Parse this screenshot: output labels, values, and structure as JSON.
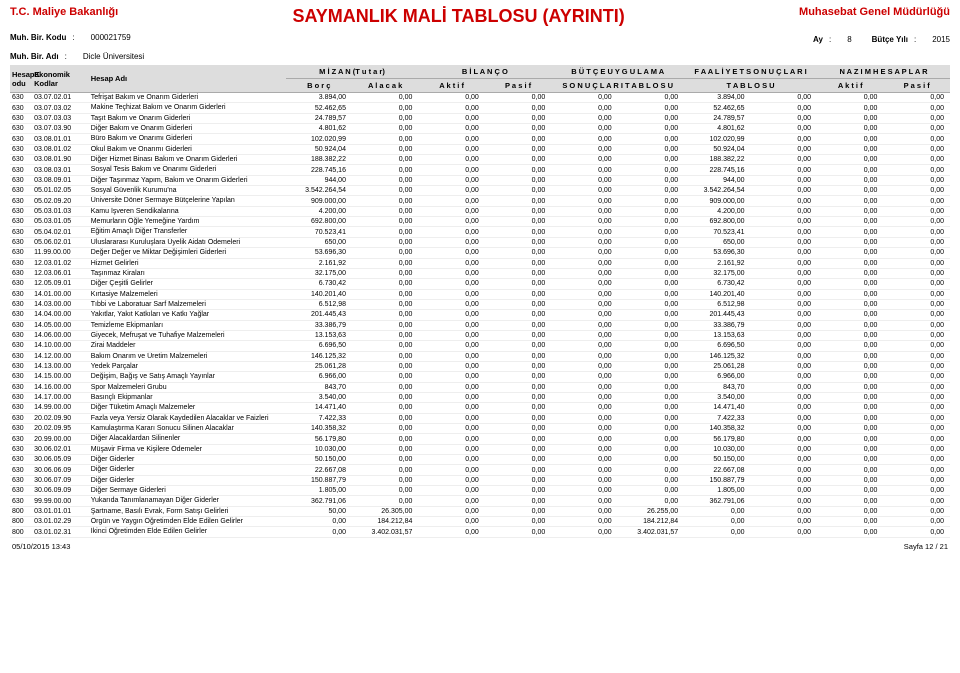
{
  "header": {
    "tc_line": "T.C. Maliye Bakanlığı",
    "gm_line": "Muhasebat Genel Müdürlüğü",
    "title": "SAYMANLIK MALİ TABLOSU (AYRINTI)",
    "muh_bir_kodu_label": "Muh. Bir. Kodu",
    "muh_bir_kodu_val": "000021759",
    "ay_label": "Ay",
    "ay_val": "8",
    "butce_yili_label": "Bütçe Yılı",
    "butce_yili_val": "2015",
    "muh_bir_adi_label": "Muh. Bir. Adı",
    "muh_bir_adi_val": "Dicle Üniversitesi"
  },
  "columns": {
    "hesap_kodu": "HesapK odu",
    "ekonomik_kodlar": "Ekonomik Kodlar",
    "hesap_adi": "Hesap Adı",
    "mizan": "M İ Z A N   (T u t a r)",
    "bilanco": "B İ L A N Ç O",
    "butce_uyg": "B Ü T Ç E   U Y G U L A M A",
    "faaliyet": "F A A L İ Y E T   S O N U Ç L A R I",
    "nazim": "N A Z I M   H E S A P L A R",
    "borc": "B o r ç",
    "alacak": "A l a c a k",
    "aktif": "A k t i f",
    "pasif": "P a s i f",
    "sonuc_tab": "S O N U Ç L A R I   T A B L O S U",
    "tablosu": "T A B L O S U"
  },
  "rows": [
    {
      "h": "630",
      "k": "03.07.02.01",
      "ad": "Tefrişat Bakım ve Onarım Giderleri",
      "v": [
        "3.894,00",
        "0,00",
        "0,00",
        "0,00",
        "0,00",
        "0,00",
        "3.894,00",
        "0,00",
        "0,00",
        "0,00"
      ]
    },
    {
      "h": "630",
      "k": "03.07.03.02",
      "ad": "Makine Teçhizat Bakım ve Onarım Giderleri",
      "v": [
        "52.462,65",
        "0,00",
        "0,00",
        "0,00",
        "0,00",
        "0,00",
        "52.462,65",
        "0,00",
        "0,00",
        "0,00"
      ]
    },
    {
      "h": "630",
      "k": "03.07.03.03",
      "ad": "Taşıt Bakım ve Onarım Giderleri",
      "v": [
        "24.789,57",
        "0,00",
        "0,00",
        "0,00",
        "0,00",
        "0,00",
        "24.789,57",
        "0,00",
        "0,00",
        "0,00"
      ]
    },
    {
      "h": "630",
      "k": "03.07.03.90",
      "ad": "Diğer Bakım ve Onarım Giderleri",
      "v": [
        "4.801,62",
        "0,00",
        "0,00",
        "0,00",
        "0,00",
        "0,00",
        "4.801,62",
        "0,00",
        "0,00",
        "0,00"
      ]
    },
    {
      "h": "630",
      "k": "03.08.01.01",
      "ad": "Büro Bakım ve Onarımı Giderleri",
      "v": [
        "102.020,99",
        "0,00",
        "0,00",
        "0,00",
        "0,00",
        "0,00",
        "102.020,99",
        "0,00",
        "0,00",
        "0,00"
      ]
    },
    {
      "h": "630",
      "k": "03.08.01.02",
      "ad": "Okul Bakım ve Onarımı Giderleri",
      "v": [
        "50.924,04",
        "0,00",
        "0,00",
        "0,00",
        "0,00",
        "0,00",
        "50.924,04",
        "0,00",
        "0,00",
        "0,00"
      ]
    },
    {
      "h": "630",
      "k": "03.08.01.90",
      "ad": "Diğer Hizmet Binası Bakım ve Onarım Giderleri",
      "v": [
        "188.382,22",
        "0,00",
        "0,00",
        "0,00",
        "0,00",
        "0,00",
        "188.382,22",
        "0,00",
        "0,00",
        "0,00"
      ]
    },
    {
      "h": "630",
      "k": "03.08.03.01",
      "ad": "Sosyal Tesis Bakım ve Onarımı Giderleri",
      "v": [
        "228.745,16",
        "0,00",
        "0,00",
        "0,00",
        "0,00",
        "0,00",
        "228.745,16",
        "0,00",
        "0,00",
        "0,00"
      ]
    },
    {
      "h": "630",
      "k": "03.08.09.01",
      "ad": "Diğer Taşınmaz Yapım, Bakım ve Onarım Giderleri",
      "v": [
        "944,00",
        "0,00",
        "0,00",
        "0,00",
        "0,00",
        "0,00",
        "944,00",
        "0,00",
        "0,00",
        "0,00"
      ]
    },
    {
      "h": "630",
      "k": "05.01.02.05",
      "ad": "Sosyal Güvenlik Kurumu'na",
      "v": [
        "3.542.264,54",
        "0,00",
        "0,00",
        "0,00",
        "0,00",
        "0,00",
        "3.542.264,54",
        "0,00",
        "0,00",
        "0,00"
      ]
    },
    {
      "h": "630",
      "k": "05.02.09.20",
      "ad": "Üniversite Döner Sermaye Bütçelerine Yapılan",
      "v": [
        "909.000,00",
        "0,00",
        "0,00",
        "0,00",
        "0,00",
        "0,00",
        "909.000,00",
        "0,00",
        "0,00",
        "0,00"
      ]
    },
    {
      "h": "630",
      "k": "05.03.01.03",
      "ad": "Kamu İşveren Sendikalarına",
      "v": [
        "4.200,00",
        "0,00",
        "0,00",
        "0,00",
        "0,00",
        "0,00",
        "4.200,00",
        "0,00",
        "0,00",
        "0,00"
      ]
    },
    {
      "h": "630",
      "k": "05.03.01.05",
      "ad": "Memurların Öğle Yemeğine Yardım",
      "v": [
        "692.800,00",
        "0,00",
        "0,00",
        "0,00",
        "0,00",
        "0,00",
        "692.800,00",
        "0,00",
        "0,00",
        "0,00"
      ]
    },
    {
      "h": "630",
      "k": "05.04.02.01",
      "ad": "Eğitim Amaçlı Diğer Transferler",
      "v": [
        "70.523,41",
        "0,00",
        "0,00",
        "0,00",
        "0,00",
        "0,00",
        "70.523,41",
        "0,00",
        "0,00",
        "0,00"
      ]
    },
    {
      "h": "630",
      "k": "05.06.02.01",
      "ad": "Uluslararası Kuruluşlara Üyelik Aidatı Ödemeleri",
      "v": [
        "650,00",
        "0,00",
        "0,00",
        "0,00",
        "0,00",
        "0,00",
        "650,00",
        "0,00",
        "0,00",
        "0,00"
      ]
    },
    {
      "h": "630",
      "k": "11.99.00.00",
      "ad": "Değer Değer ve Miktar Değişimleri Giderleri",
      "v": [
        "53.696,30",
        "0,00",
        "0,00",
        "0,00",
        "0,00",
        "0,00",
        "53.696,30",
        "0,00",
        "0,00",
        "0,00"
      ]
    },
    {
      "h": "630",
      "k": "12.03.01.02",
      "ad": "Hizmet Gelirleri",
      "v": [
        "2.161,92",
        "0,00",
        "0,00",
        "0,00",
        "0,00",
        "0,00",
        "2.161,92",
        "0,00",
        "0,00",
        "0,00"
      ]
    },
    {
      "h": "630",
      "k": "12.03.06.01",
      "ad": "Taşınmaz Kiraları",
      "v": [
        "32.175,00",
        "0,00",
        "0,00",
        "0,00",
        "0,00",
        "0,00",
        "32.175,00",
        "0,00",
        "0,00",
        "0,00"
      ]
    },
    {
      "h": "630",
      "k": "12.05.09.01",
      "ad": "Diğer Çeşitli Gelirler",
      "v": [
        "6.730,42",
        "0,00",
        "0,00",
        "0,00",
        "0,00",
        "0,00",
        "6.730,42",
        "0,00",
        "0,00",
        "0,00"
      ]
    },
    {
      "h": "630",
      "k": "14.01.00.00",
      "ad": "Kırtasiye Malzemeleri",
      "v": [
        "140.201,40",
        "0,00",
        "0,00",
        "0,00",
        "0,00",
        "0,00",
        "140.201,40",
        "0,00",
        "0,00",
        "0,00"
      ]
    },
    {
      "h": "630",
      "k": "14.03.00.00",
      "ad": "Tıbbi ve Laboratuar Sarf Malzemeleri",
      "v": [
        "6.512,98",
        "0,00",
        "0,00",
        "0,00",
        "0,00",
        "0,00",
        "6.512,98",
        "0,00",
        "0,00",
        "0,00"
      ]
    },
    {
      "h": "630",
      "k": "14.04.00.00",
      "ad": "Yakıtlar, Yakıt Katkıları ve Katkı Yağlar",
      "v": [
        "201.445,43",
        "0,00",
        "0,00",
        "0,00",
        "0,00",
        "0,00",
        "201.445,43",
        "0,00",
        "0,00",
        "0,00"
      ]
    },
    {
      "h": "630",
      "k": "14.05.00.00",
      "ad": "Temizleme Ekipmanları",
      "v": [
        "33.386,79",
        "0,00",
        "0,00",
        "0,00",
        "0,00",
        "0,00",
        "33.386,79",
        "0,00",
        "0,00",
        "0,00"
      ]
    },
    {
      "h": "630",
      "k": "14.06.00.00",
      "ad": "Giyecek, Mefruşat ve Tuhafiye Malzemeleri",
      "v": [
        "13.153,63",
        "0,00",
        "0,00",
        "0,00",
        "0,00",
        "0,00",
        "13.153,63",
        "0,00",
        "0,00",
        "0,00"
      ]
    },
    {
      "h": "630",
      "k": "14.10.00.00",
      "ad": "Zirai Maddeler",
      "v": [
        "6.696,50",
        "0,00",
        "0,00",
        "0,00",
        "0,00",
        "0,00",
        "6.696,50",
        "0,00",
        "0,00",
        "0,00"
      ]
    },
    {
      "h": "630",
      "k": "14.12.00.00",
      "ad": "Bakım Onarım ve Üretim Malzemeleri",
      "v": [
        "146.125,32",
        "0,00",
        "0,00",
        "0,00",
        "0,00",
        "0,00",
        "146.125,32",
        "0,00",
        "0,00",
        "0,00"
      ]
    },
    {
      "h": "630",
      "k": "14.13.00.00",
      "ad": "Yedek Parçalar",
      "v": [
        "25.061,28",
        "0,00",
        "0,00",
        "0,00",
        "0,00",
        "0,00",
        "25.061,28",
        "0,00",
        "0,00",
        "0,00"
      ]
    },
    {
      "h": "630",
      "k": "14.15.00.00",
      "ad": "Değişim, Bağış ve Satış Amaçlı Yayınlar",
      "v": [
        "6.966,00",
        "0,00",
        "0,00",
        "0,00",
        "0,00",
        "0,00",
        "6.966,00",
        "0,00",
        "0,00",
        "0,00"
      ]
    },
    {
      "h": "630",
      "k": "14.16.00.00",
      "ad": "Spor Malzemeleri Grubu",
      "v": [
        "843,70",
        "0,00",
        "0,00",
        "0,00",
        "0,00",
        "0,00",
        "843,70",
        "0,00",
        "0,00",
        "0,00"
      ]
    },
    {
      "h": "630",
      "k": "14.17.00.00",
      "ad": "Basınçlı Ekipmanlar",
      "v": [
        "3.540,00",
        "0,00",
        "0,00",
        "0,00",
        "0,00",
        "0,00",
        "3.540,00",
        "0,00",
        "0,00",
        "0,00"
      ]
    },
    {
      "h": "630",
      "k": "14.99.00.00",
      "ad": "Diğer Tüketim Amaçlı Malzemeler",
      "v": [
        "14.471,40",
        "0,00",
        "0,00",
        "0,00",
        "0,00",
        "0,00",
        "14.471,40",
        "0,00",
        "0,00",
        "0,00"
      ]
    },
    {
      "h": "630",
      "k": "20.02.09.90",
      "ad": "Fazla veya Yersiz Olarak Kaydedilen Alacaklar ve Faizleri",
      "v": [
        "7.422,33",
        "0,00",
        "0,00",
        "0,00",
        "0,00",
        "0,00",
        "7.422,33",
        "0,00",
        "0,00",
        "0,00"
      ]
    },
    {
      "h": "630",
      "k": "20.02.09.95",
      "ad": "Kamulaştırma Kararı Sonucu Silinen Alacaklar",
      "v": [
        "140.358,32",
        "0,00",
        "0,00",
        "0,00",
        "0,00",
        "0,00",
        "140.358,32",
        "0,00",
        "0,00",
        "0,00"
      ]
    },
    {
      "h": "630",
      "k": "20.99.00.00",
      "ad": "Diğer Alacaklardan Silinenler",
      "v": [
        "56.179,80",
        "0,00",
        "0,00",
        "0,00",
        "0,00",
        "0,00",
        "56.179,80",
        "0,00",
        "0,00",
        "0,00"
      ]
    },
    {
      "h": "630",
      "k": "30.06.02.01",
      "ad": "Müşavir Firma ve Kişilere Ödemeler",
      "v": [
        "10.030,00",
        "0,00",
        "0,00",
        "0,00",
        "0,00",
        "0,00",
        "10.030,00",
        "0,00",
        "0,00",
        "0,00"
      ]
    },
    {
      "h": "630",
      "k": "30.06.05.09",
      "ad": "Diğer Giderler",
      "v": [
        "50.150,00",
        "0,00",
        "0,00",
        "0,00",
        "0,00",
        "0,00",
        "50.150,00",
        "0,00",
        "0,00",
        "0,00"
      ]
    },
    {
      "h": "630",
      "k": "30.06.06.09",
      "ad": "Diğer Giderler",
      "v": [
        "22.667,08",
        "0,00",
        "0,00",
        "0,00",
        "0,00",
        "0,00",
        "22.667,08",
        "0,00",
        "0,00",
        "0,00"
      ]
    },
    {
      "h": "630",
      "k": "30.06.07.09",
      "ad": "Diğer Giderler",
      "v": [
        "150.887,79",
        "0,00",
        "0,00",
        "0,00",
        "0,00",
        "0,00",
        "150.887,79",
        "0,00",
        "0,00",
        "0,00"
      ]
    },
    {
      "h": "630",
      "k": "30.06.09.09",
      "ad": "Diğer Sermaye Giderleri",
      "v": [
        "1.805,00",
        "0,00",
        "0,00",
        "0,00",
        "0,00",
        "0,00",
        "1.805,00",
        "0,00",
        "0,00",
        "0,00"
      ]
    },
    {
      "h": "630",
      "k": "99.99.00.00",
      "ad": "Yukarıda Tanımlanamayan Diğer Giderler",
      "v": [
        "362.791,06",
        "0,00",
        "0,00",
        "0,00",
        "0,00",
        "0,00",
        "362.791,06",
        "0,00",
        "0,00",
        "0,00"
      ]
    },
    {
      "h": "800",
      "k": "03.01.01.01",
      "ad": "Şartname, Basılı Evrak, Form Satışı Gelirleri",
      "v": [
        "50,00",
        "26.305,00",
        "0,00",
        "0,00",
        "0,00",
        "26.255,00",
        "0,00",
        "0,00",
        "0,00",
        "0,00"
      ]
    },
    {
      "h": "800",
      "k": "03.01.02.29",
      "ad": "Örgün ve Yaygın Öğretimden Elde Edilen Gelirler",
      "v": [
        "0,00",
        "184.212,84",
        "0,00",
        "0,00",
        "0,00",
        "184.212,84",
        "0,00",
        "0,00",
        "0,00",
        "0,00"
      ]
    },
    {
      "h": "800",
      "k": "03.01.02.31",
      "ad": "İkinci Öğretimden Elde Edilen Gelirler",
      "v": [
        "0,00",
        "3.402.031,57",
        "0,00",
        "0,00",
        "0,00",
        "3.402.031,57",
        "0,00",
        "0,00",
        "0,00",
        "0,00"
      ]
    }
  ],
  "footer": {
    "left": "05/10/2015 13:43",
    "right": "Sayfa 12 / 21"
  }
}
